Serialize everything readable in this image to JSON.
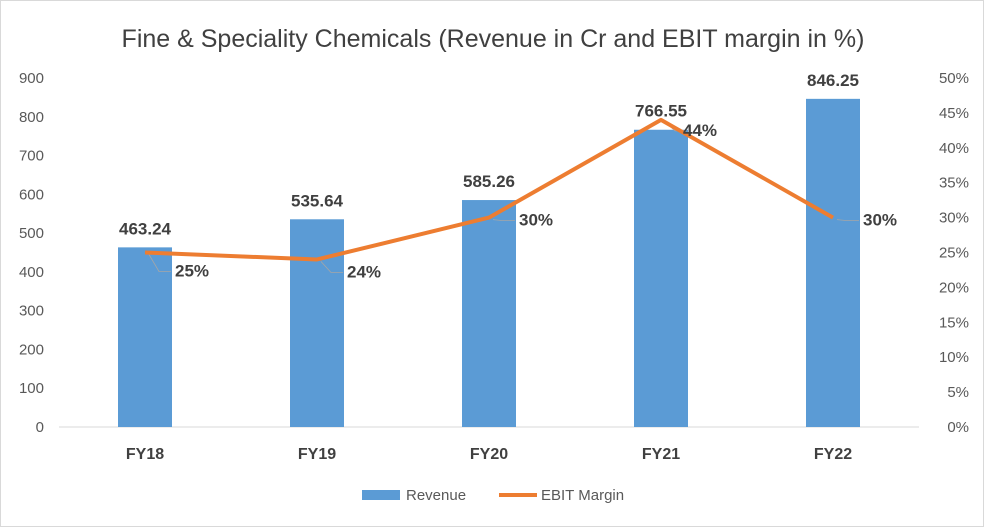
{
  "chart_data": {
    "type": "bar",
    "title": "Fine & Speciality Chemicals (Revenue in Cr and EBIT margin in %)",
    "categories": [
      "FY18",
      "FY19",
      "FY20",
      "FY21",
      "FY22"
    ],
    "series": [
      {
        "name": "Revenue",
        "type": "bar",
        "axis": "left",
        "color": "#5b9bd5",
        "values": [
          463.24,
          535.64,
          585.26,
          766.55,
          846.25
        ],
        "labels": [
          "463.24",
          "535.64",
          "585.26",
          "766.55",
          "846.25"
        ]
      },
      {
        "name": "EBIT Margin",
        "type": "line",
        "axis": "right",
        "color": "#ed7d31",
        "values": [
          25,
          24,
          30,
          44,
          30
        ],
        "labels": [
          "25%",
          "24%",
          "30%",
          "44%",
          "30%"
        ]
      }
    ],
    "y_left": {
      "ylim": [
        0,
        900
      ],
      "ticks": [
        "0",
        "100",
        "200",
        "300",
        "400",
        "500",
        "600",
        "700",
        "800",
        "900"
      ]
    },
    "y_right": {
      "ylim": [
        0,
        50
      ],
      "ticks": [
        "0%",
        "5%",
        "10%",
        "15%",
        "20%",
        "25%",
        "30%",
        "35%",
        "40%",
        "45%",
        "50%"
      ]
    },
    "grid": false,
    "legend": "bottom"
  }
}
